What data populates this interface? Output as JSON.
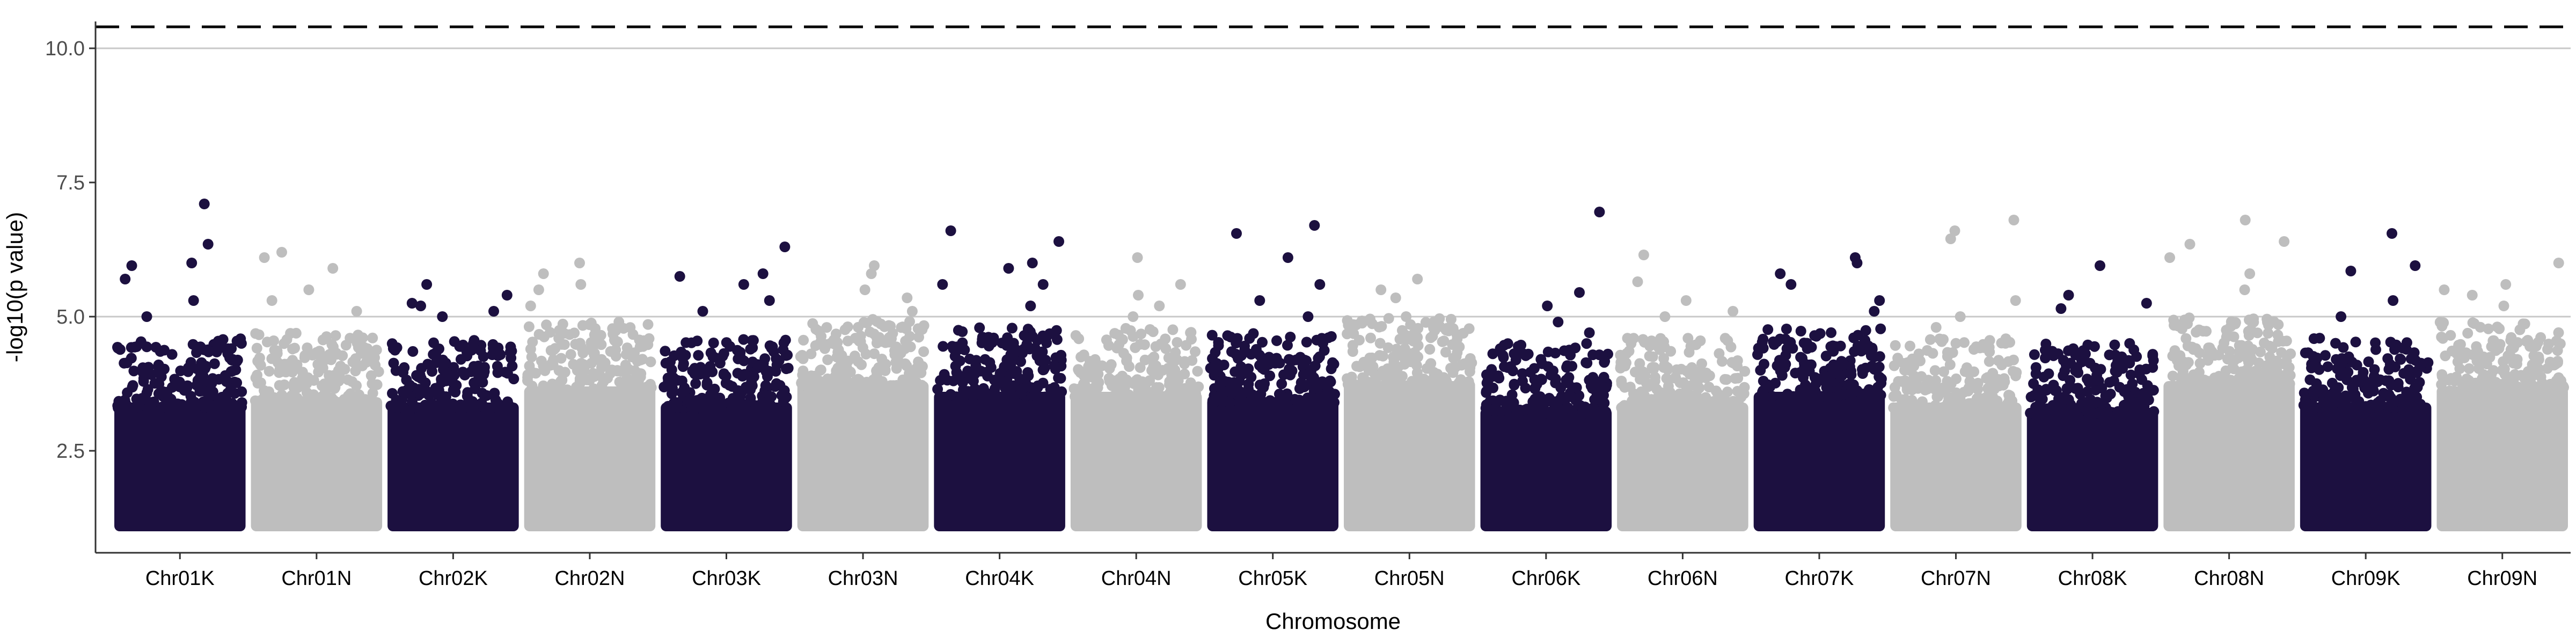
{
  "chart_data": {
    "type": "scatter",
    "title": "",
    "xlabel": "Chromosome",
    "ylabel": "-log10(p value)",
    "ylim": [
      0.6,
      10.5
    ],
    "yticks": [
      2.5,
      5.0,
      7.5,
      10.0
    ],
    "ytick_labels": [
      "2.5",
      "5.0",
      "7.5",
      "10.0"
    ],
    "hlines": [
      {
        "y": 5.0,
        "style": "solid",
        "color": "#c8c8c8"
      },
      {
        "y": 10.0,
        "style": "solid",
        "color": "#c8c8c8"
      },
      {
        "y": 10.4,
        "style": "dashed",
        "color": "#000000"
      }
    ],
    "colors": {
      "K": "#1c1040",
      "N": "#bebebe"
    },
    "grid": false,
    "legend": "none",
    "chromosomes": [
      {
        "name": "Chr01K",
        "color": "#1c1040",
        "base": 4.0,
        "peaks": [
          7.1,
          6.35,
          6.0,
          5.95,
          5.7,
          5.3,
          5.0
        ]
      },
      {
        "name": "Chr01N",
        "color": "#bebebe",
        "base": 4.1,
        "peaks": [
          6.2,
          6.1,
          5.9,
          5.5,
          5.3,
          5.1
        ]
      },
      {
        "name": "Chr02K",
        "color": "#1c1040",
        "base": 4.0,
        "peaks": [
          5.6,
          5.4,
          5.25,
          5.2,
          5.1,
          5.0
        ]
      },
      {
        "name": "Chr02N",
        "color": "#bebebe",
        "base": 4.3,
        "peaks": [
          6.0,
          5.8,
          5.6,
          5.5,
          5.2
        ]
      },
      {
        "name": "Chr03K",
        "color": "#1c1040",
        "base": 4.0,
        "peaks": [
          6.3,
          5.8,
          5.75,
          5.6,
          5.3,
          5.1
        ]
      },
      {
        "name": "Chr03N",
        "color": "#bebebe",
        "base": 4.4,
        "peaks": [
          5.95,
          5.8,
          5.5,
          5.35,
          5.1
        ]
      },
      {
        "name": "Chr04K",
        "color": "#1c1040",
        "base": 4.2,
        "peaks": [
          6.6,
          6.4,
          6.0,
          5.9,
          5.6,
          5.6,
          5.2
        ]
      },
      {
        "name": "Chr04N",
        "color": "#bebebe",
        "base": 4.2,
        "peaks": [
          6.1,
          5.6,
          5.4,
          5.2,
          5.0
        ]
      },
      {
        "name": "Chr05K",
        "color": "#1c1040",
        "base": 4.1,
        "peaks": [
          6.7,
          6.55,
          6.1,
          5.6,
          5.3,
          5.0
        ]
      },
      {
        "name": "Chr05N",
        "color": "#bebebe",
        "base": 4.4,
        "peaks": [
          5.7,
          5.5,
          5.35,
          5.0
        ]
      },
      {
        "name": "Chr06K",
        "color": "#1c1040",
        "base": 3.9,
        "peaks": [
          6.95,
          5.45,
          5.2,
          4.9,
          4.7
        ]
      },
      {
        "name": "Chr06N",
        "color": "#bebebe",
        "base": 4.0,
        "peaks": [
          6.15,
          5.65,
          5.3,
          5.1,
          5.0
        ]
      },
      {
        "name": "Chr07K",
        "color": "#1c1040",
        "base": 4.2,
        "peaks": [
          6.1,
          6.0,
          5.8,
          5.6,
          5.3,
          5.1
        ]
      },
      {
        "name": "Chr07N",
        "color": "#bebebe",
        "base": 4.0,
        "peaks": [
          6.8,
          6.6,
          6.45,
          5.3,
          5.0,
          4.8
        ]
      },
      {
        "name": "Chr08K",
        "color": "#1c1040",
        "base": 3.9,
        "peaks": [
          5.95,
          5.4,
          5.25,
          5.15,
          4.5
        ]
      },
      {
        "name": "Chr08N",
        "color": "#bebebe",
        "base": 4.4,
        "peaks": [
          6.8,
          6.4,
          6.35,
          6.1,
          5.8,
          5.5
        ]
      },
      {
        "name": "Chr09K",
        "color": "#1c1040",
        "base": 4.0,
        "peaks": [
          6.55,
          5.95,
          5.85,
          5.3,
          5.0
        ]
      },
      {
        "name": "Chr09N",
        "color": "#bebebe",
        "base": 4.3,
        "peaks": [
          6.0,
          5.6,
          5.5,
          5.4,
          5.2
        ]
      }
    ]
  }
}
